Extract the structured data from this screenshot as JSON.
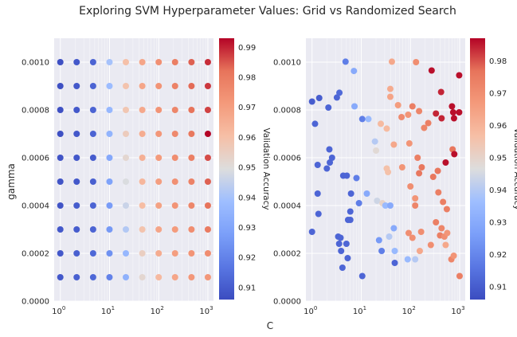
{
  "figure": {
    "suptitle": "Exploring SVM Hyperparameter Values: Grid vs Randomized Search",
    "shared_xlabel": "C",
    "shared_ylabel": "gamma",
    "colorbar_label": "Validation Accuracy",
    "colormap": "coolwarm",
    "colors": {
      "plot_background": "#eaeaf2",
      "grid": "#ffffff",
      "text": "#262626",
      "cmap_low": "#3b4cc0",
      "cmap_mid": "#dddddd",
      "cmap_high": "#b40426"
    }
  },
  "chart_data": [
    {
      "type": "scatter",
      "title": "",
      "xlabel": "",
      "ylabel": "",
      "xscale": "log",
      "xlim": [
        0.75,
        1300
      ],
      "ylim": [
        0,
        0.0011
      ],
      "x_ticks": [
        "10^0",
        "10^1",
        "10^2",
        "10^3"
      ],
      "y_ticks": [
        "0.0000",
        "0.0002",
        "0.0004",
        "0.0006",
        "0.0008",
        "0.0010"
      ],
      "grid": true,
      "colorbar": {
        "label": "Validation Accuracy",
        "range": [
          0.906,
          0.993
        ],
        "ticks": [
          "0.91",
          "0.92",
          "0.93",
          "0.94",
          "0.95",
          "0.96",
          "0.97",
          "0.98",
          "0.99"
        ]
      },
      "grid_search": {
        "C_values": [
          1,
          2.15,
          4.64,
          10,
          21.5,
          46.4,
          100,
          215,
          464,
          1000
        ],
        "gamma_values": [
          0.0001,
          0.0002,
          0.0003,
          0.0004,
          0.0005,
          0.0006,
          0.0007,
          0.0008,
          0.0009,
          0.001
        ],
        "accuracy_rows": [
          [
            0.909,
            0.911,
            0.913,
            0.92,
            0.934,
            0.952,
            0.962,
            0.968,
            0.972,
            0.972
          ],
          [
            0.909,
            0.911,
            0.913,
            0.924,
            0.936,
            0.955,
            0.966,
            0.97,
            0.973,
            0.975
          ],
          [
            0.909,
            0.91,
            0.912,
            0.926,
            0.942,
            0.959,
            0.968,
            0.971,
            0.975,
            0.98
          ],
          [
            0.908,
            0.91,
            0.912,
            0.927,
            0.946,
            0.961,
            0.969,
            0.973,
            0.977,
            0.982
          ],
          [
            0.908,
            0.909,
            0.911,
            0.929,
            0.949,
            0.963,
            0.97,
            0.974,
            0.978,
            0.984
          ],
          [
            0.908,
            0.909,
            0.91,
            0.931,
            0.952,
            0.965,
            0.971,
            0.975,
            0.979,
            0.986
          ],
          [
            0.907,
            0.909,
            0.912,
            0.935,
            0.956,
            0.966,
            0.972,
            0.976,
            0.981,
            0.993
          ],
          [
            0.907,
            0.909,
            0.912,
            0.936,
            0.958,
            0.967,
            0.973,
            0.977,
            0.982,
            0.987
          ],
          [
            0.907,
            0.909,
            0.912,
            0.938,
            0.959,
            0.968,
            0.973,
            0.978,
            0.983,
            0.988
          ],
          [
            0.907,
            0.909,
            0.912,
            0.94,
            0.96,
            0.968,
            0.974,
            0.979,
            0.984,
            0.989
          ]
        ]
      }
    },
    {
      "type": "scatter",
      "title": "",
      "xlabel": "",
      "ylabel": "",
      "xscale": "log",
      "xlim": [
        0.75,
        1300
      ],
      "ylim": [
        0,
        0.0011
      ],
      "x_ticks": [
        "10^0",
        "10^1",
        "10^2",
        "10^3"
      ],
      "y_ticks": [
        "0.0000",
        "0.0002",
        "0.0004",
        "0.0006",
        "0.0008",
        "0.0010"
      ],
      "grid": true,
      "colorbar": {
        "label": "Validation Accuracy",
        "range": [
          0.906,
          0.987
        ],
        "ticks": [
          "0.91",
          "0.92",
          "0.93",
          "0.94",
          "0.95",
          "0.96",
          "0.97",
          "0.98"
        ]
      },
      "points": [
        {
          "C": 1.0,
          "gamma": 0.000835,
          "acc": 0.91
        },
        {
          "C": 1.4,
          "gamma": 0.00085,
          "acc": 0.91
        },
        {
          "C": 1.15,
          "gamma": 0.000742,
          "acc": 0.912
        },
        {
          "C": 2.15,
          "gamma": 0.00081,
          "acc": 0.912
        },
        {
          "C": 3.2,
          "gamma": 0.000852,
          "acc": 0.912
        },
        {
          "C": 3.6,
          "gamma": 0.000872,
          "acc": 0.913
        },
        {
          "C": 4.8,
          "gamma": 0.001002,
          "acc": 0.918
        },
        {
          "C": 7.1,
          "gamma": 0.000963,
          "acc": 0.93
        },
        {
          "C": 7.3,
          "gamma": 0.000815,
          "acc": 0.93
        },
        {
          "C": 10.5,
          "gamma": 0.000762,
          "acc": 0.918
        },
        {
          "C": 14.0,
          "gamma": 0.000762,
          "acc": 0.935
        },
        {
          "C": 19.0,
          "gamma": 0.000668,
          "acc": 0.94
        },
        {
          "C": 25.0,
          "gamma": 0.000742,
          "acc": 0.958
        },
        {
          "C": 33.0,
          "gamma": 0.000722,
          "acc": 0.958
        },
        {
          "C": 39.0,
          "gamma": 0.000888,
          "acc": 0.962
        },
        {
          "C": 39.0,
          "gamma": 0.000855,
          "acc": 0.964
        },
        {
          "C": 42.0,
          "gamma": 0.001002,
          "acc": 0.963
        },
        {
          "C": 56.0,
          "gamma": 0.00082,
          "acc": 0.966
        },
        {
          "C": 66.0,
          "gamma": 0.00077,
          "acc": 0.971
        },
        {
          "C": 90.0,
          "gamma": 0.00078,
          "acc": 0.968
        },
        {
          "C": 110,
          "gamma": 0.000815,
          "acc": 0.974
        },
        {
          "C": 130,
          "gamma": 0.001,
          "acc": 0.97
        },
        {
          "C": 150,
          "gamma": 0.000795,
          "acc": 0.972
        },
        {
          "C": 190,
          "gamma": 0.000725,
          "acc": 0.972
        },
        {
          "C": 230,
          "gamma": 0.000745,
          "acc": 0.974
        },
        {
          "C": 270,
          "gamma": 0.000965,
          "acc": 0.986
        },
        {
          "C": 330,
          "gamma": 0.000785,
          "acc": 0.984
        },
        {
          "C": 420,
          "gamma": 0.000875,
          "acc": 0.984
        },
        {
          "C": 430,
          "gamma": 0.000765,
          "acc": 0.984
        },
        {
          "C": 700,
          "gamma": 0.000815,
          "acc": 0.986
        },
        {
          "C": 740,
          "gamma": 0.00079,
          "acc": 0.986
        },
        {
          "C": 770,
          "gamma": 0.000765,
          "acc": 0.986
        },
        {
          "C": 980,
          "gamma": 0.000945,
          "acc": 0.986
        },
        {
          "C": 980,
          "gamma": 0.00079,
          "acc": 0.986
        },
        {
          "C": 1.3,
          "gamma": 0.00057,
          "acc": 0.912
        },
        {
          "C": 2.0,
          "gamma": 0.000555,
          "acc": 0.912
        },
        {
          "C": 2.25,
          "gamma": 0.000635,
          "acc": 0.912
        },
        {
          "C": 2.3,
          "gamma": 0.00058,
          "acc": 0.912
        },
        {
          "C": 2.55,
          "gamma": 0.0006,
          "acc": 0.912
        },
        {
          "C": 4.3,
          "gamma": 0.000525,
          "acc": 0.912
        },
        {
          "C": 5.1,
          "gamma": 0.000525,
          "acc": 0.912
        },
        {
          "C": 8.0,
          "gamma": 0.000515,
          "acc": 0.918
        },
        {
          "C": 20.0,
          "gamma": 0.00063,
          "acc": 0.948
        },
        {
          "C": 33.0,
          "gamma": 0.000555,
          "acc": 0.956
        },
        {
          "C": 35.0,
          "gamma": 0.00054,
          "acc": 0.956
        },
        {
          "C": 46.0,
          "gamma": 0.000655,
          "acc": 0.963
        },
        {
          "C": 68.0,
          "gamma": 0.00056,
          "acc": 0.968
        },
        {
          "C": 95.0,
          "gamma": 0.00066,
          "acc": 0.968
        },
        {
          "C": 140,
          "gamma": 0.0006,
          "acc": 0.974
        },
        {
          "C": 150,
          "gamma": 0.000535,
          "acc": 0.976
        },
        {
          "C": 170,
          "gamma": 0.00056,
          "acc": 0.976
        },
        {
          "C": 290,
          "gamma": 0.00052,
          "acc": 0.976
        },
        {
          "C": 360,
          "gamma": 0.000545,
          "acc": 0.976
        },
        {
          "C": 520,
          "gamma": 0.00058,
          "acc": 0.986
        },
        {
          "C": 720,
          "gamma": 0.000635,
          "acc": 0.976
        },
        {
          "C": 780,
          "gamma": 0.000615,
          "acc": 0.986
        },
        {
          "C": 1.3,
          "gamma": 0.00045,
          "acc": 0.912
        },
        {
          "C": 1.35,
          "gamma": 0.000365,
          "acc": 0.912
        },
        {
          "C": 5.4,
          "gamma": 0.00034,
          "acc": 0.912
        },
        {
          "C": 6.0,
          "gamma": 0.000375,
          "acc": 0.912
        },
        {
          "C": 6.0,
          "gamma": 0.00034,
          "acc": 0.912
        },
        {
          "C": 6.2,
          "gamma": 0.00045,
          "acc": 0.912
        },
        {
          "C": 9.0,
          "gamma": 0.00041,
          "acc": 0.918
        },
        {
          "C": 13.0,
          "gamma": 0.00045,
          "acc": 0.93
        },
        {
          "C": 21.0,
          "gamma": 0.00042,
          "acc": 0.944
        },
        {
          "C": 27.0,
          "gamma": 0.00041,
          "acc": 0.95
        },
        {
          "C": 31.0,
          "gamma": 0.0004,
          "acc": 0.935
        },
        {
          "C": 39.0,
          "gamma": 0.0004,
          "acc": 0.93
        },
        {
          "C": 100,
          "gamma": 0.00048,
          "acc": 0.97
        },
        {
          "C": 125,
          "gamma": 0.00043,
          "acc": 0.968
        },
        {
          "C": 125,
          "gamma": 0.0004,
          "acc": 0.972
        },
        {
          "C": 370,
          "gamma": 0.000455,
          "acc": 0.974
        },
        {
          "C": 460,
          "gamma": 0.000415,
          "acc": 0.974
        },
        {
          "C": 550,
          "gamma": 0.000385,
          "acc": 0.974
        },
        {
          "C": 1.0,
          "gamma": 0.00029,
          "acc": 0.912
        },
        {
          "C": 3.4,
          "gamma": 0.00027,
          "acc": 0.912
        },
        {
          "C": 3.55,
          "gamma": 0.00024,
          "acc": 0.912
        },
        {
          "C": 3.8,
          "gamma": 0.000265,
          "acc": 0.912
        },
        {
          "C": 3.9,
          "gamma": 0.00021,
          "acc": 0.912
        },
        {
          "C": 4.15,
          "gamma": 0.00014,
          "acc": 0.912
        },
        {
          "C": 5.0,
          "gamma": 0.00024,
          "acc": 0.912
        },
        {
          "C": 5.3,
          "gamma": 0.00018,
          "acc": 0.912
        },
        {
          "C": 10.5,
          "gamma": 0.000105,
          "acc": 0.912
        },
        {
          "C": 23.0,
          "gamma": 0.000255,
          "acc": 0.925
        },
        {
          "C": 26.0,
          "gamma": 0.00021,
          "acc": 0.918
        },
        {
          "C": 37.0,
          "gamma": 0.00027,
          "acc": 0.94
        },
        {
          "C": 46.0,
          "gamma": 0.000305,
          "acc": 0.93
        },
        {
          "C": 48.0,
          "gamma": 0.00021,
          "acc": 0.935
        },
        {
          "C": 48.0,
          "gamma": 0.00016,
          "acc": 0.912
        },
        {
          "C": 88.0,
          "gamma": 0.000175,
          "acc": 0.935
        },
        {
          "C": 92.0,
          "gamma": 0.000285,
          "acc": 0.97
        },
        {
          "C": 110,
          "gamma": 0.000265,
          "acc": 0.97
        },
        {
          "C": 125,
          "gamma": 0.000175,
          "acc": 0.94
        },
        {
          "C": 155,
          "gamma": 0.00021,
          "acc": 0.963
        },
        {
          "C": 165,
          "gamma": 0.00029,
          "acc": 0.97
        },
        {
          "C": 260,
          "gamma": 0.000235,
          "acc": 0.97
        },
        {
          "C": 330,
          "gamma": 0.00033,
          "acc": 0.974
        },
        {
          "C": 400,
          "gamma": 0.000275,
          "acc": 0.974
        },
        {
          "C": 430,
          "gamma": 0.000305,
          "acc": 0.972
        },
        {
          "C": 490,
          "gamma": 0.00027,
          "acc": 0.97
        },
        {
          "C": 520,
          "gamma": 0.000235,
          "acc": 0.963
        },
        {
          "C": 560,
          "gamma": 0.000285,
          "acc": 0.968
        },
        {
          "C": 680,
          "gamma": 0.000175,
          "acc": 0.972
        },
        {
          "C": 760,
          "gamma": 0.00019,
          "acc": 0.968
        },
        {
          "C": 1000,
          "gamma": 0.000105,
          "acc": 0.974
        }
      ]
    }
  ]
}
